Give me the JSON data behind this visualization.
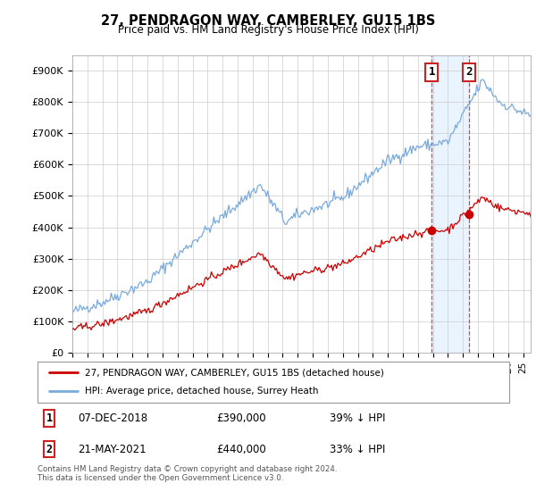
{
  "title": "27, PENDRAGON WAY, CAMBERLEY, GU15 1BS",
  "subtitle": "Price paid vs. HM Land Registry's House Price Index (HPI)",
  "ylim": [
    0,
    950000
  ],
  "yticks": [
    0,
    100000,
    200000,
    300000,
    400000,
    500000,
    600000,
    700000,
    800000,
    900000
  ],
  "ytick_labels": [
    "£0",
    "£100K",
    "£200K",
    "£300K",
    "£400K",
    "£500K",
    "£600K",
    "£700K",
    "£800K",
    "£900K"
  ],
  "red_color": "#cc0000",
  "blue_color": "#7aaadd",
  "marker_fill": "#cc0000",
  "sale1": {
    "date_num": 2018.92,
    "price": 390000,
    "label": "1",
    "date_str": "07-DEC-2018",
    "price_str": "£390,000",
    "pct_str": "39% ↓ HPI"
  },
  "sale2": {
    "date_num": 2021.38,
    "price": 440000,
    "label": "2",
    "date_str": "21-MAY-2021",
    "price_str": "£440,000",
    "pct_str": "33% ↓ HPI"
  },
  "legend_line1": "27, PENDRAGON WAY, CAMBERLEY, GU15 1BS (detached house)",
  "legend_line2": "HPI: Average price, detached house, Surrey Heath",
  "footer": "Contains HM Land Registry data © Crown copyright and database right 2024.\nThis data is licensed under the Open Government Licence v3.0.",
  "bg_color": "#ffffff",
  "grid_color": "#cccccc",
  "shade_color": "#ddeeff"
}
